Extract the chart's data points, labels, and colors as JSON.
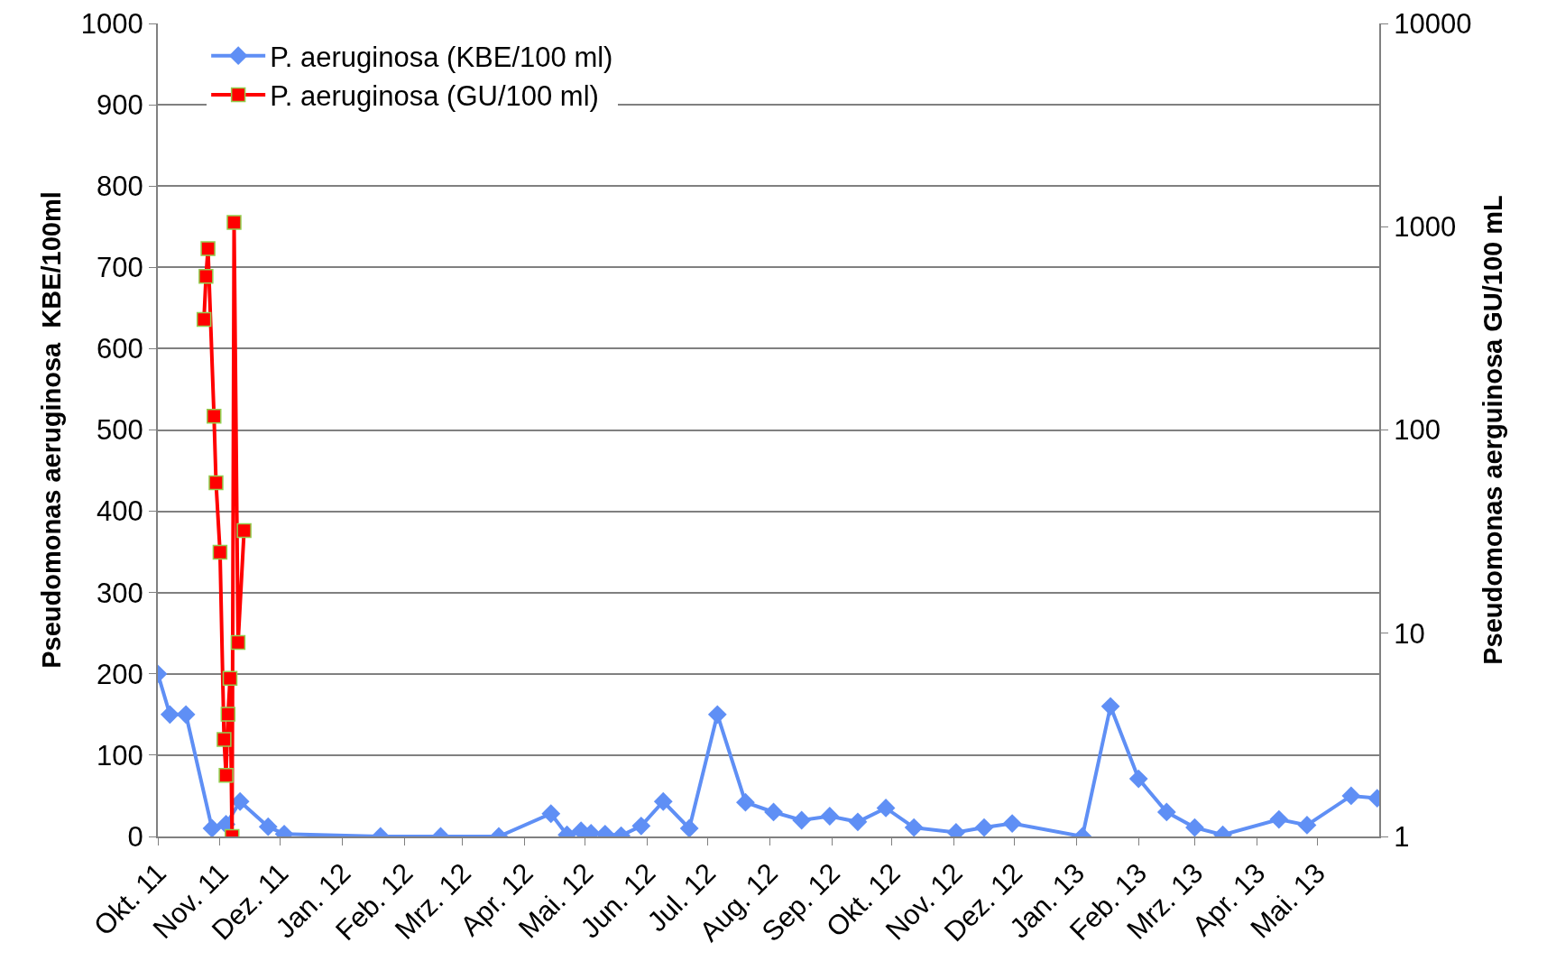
{
  "chart_data": {
    "type": "line",
    "ylabel": "Pseudomonas aeruginosa  KBE/100ml",
    "y2label": "Pseudomonas aerguinosa GU/100 mL",
    "xlim": [
      "2011-10-01",
      "2013-06-01"
    ],
    "xticks": [
      {
        "value": "2011-10-01",
        "label": "Okt. 11"
      },
      {
        "value": "2011-11-01",
        "label": "Nov. 11"
      },
      {
        "value": "2011-12-01",
        "label": "Dez. 11"
      },
      {
        "value": "2012-01-01",
        "label": "Jan. 12"
      },
      {
        "value": "2012-02-01",
        "label": "Feb. 12"
      },
      {
        "value": "2012-03-01",
        "label": "Mrz. 12"
      },
      {
        "value": "2012-04-01",
        "label": "Apr. 12"
      },
      {
        "value": "2012-05-01",
        "label": "Mai. 12"
      },
      {
        "value": "2012-06-01",
        "label": "Jun. 12"
      },
      {
        "value": "2012-07-01",
        "label": "Jul. 12"
      },
      {
        "value": "2012-08-01",
        "label": "Aug. 12"
      },
      {
        "value": "2012-09-01",
        "label": "Sep. 12"
      },
      {
        "value": "2012-10-01",
        "label": "Okt. 12"
      },
      {
        "value": "2012-11-01",
        "label": "Nov. 12"
      },
      {
        "value": "2012-12-01",
        "label": "Dez. 12"
      },
      {
        "value": "2013-01-01",
        "label": "Jan. 13"
      },
      {
        "value": "2013-02-01",
        "label": "Feb. 13"
      },
      {
        "value": "2013-03-01",
        "label": "Mrz. 13"
      },
      {
        "value": "2013-04-01",
        "label": "Apr. 13"
      },
      {
        "value": "2013-05-01",
        "label": "Mai. 13"
      }
    ],
    "ylim": [
      0,
      1000
    ],
    "yticks": [
      0,
      100,
      200,
      300,
      400,
      500,
      600,
      700,
      800,
      900,
      1000
    ],
    "y2lim": [
      1,
      10000
    ],
    "y2ticks": [
      1,
      10,
      100,
      1000,
      10000
    ],
    "log": "y2",
    "grid": "y",
    "legend": "top left",
    "line_style": "solid",
    "series": [
      {
        "name": "P. aeruginosa (KBE/100 ml)",
        "color": "#5f8ff5",
        "marker": "diamond",
        "x": [
          "2011-10-01",
          "2011-10-07",
          "2011-10-15",
          "2011-10-28",
          "2011-11-04",
          "2011-11-11",
          "2011-11-25",
          "2011-12-03",
          "2012-01-20",
          "2012-02-19",
          "2012-03-19",
          "2012-04-14",
          "2012-04-22",
          "2012-04-29",
          "2012-05-04",
          "2012-05-11",
          "2012-05-19",
          "2012-05-29",
          "2012-06-09",
          "2012-06-22",
          "2012-07-06",
          "2012-07-20",
          "2012-08-03",
          "2012-08-17",
          "2012-08-31",
          "2012-09-14",
          "2012-09-28",
          "2012-10-12",
          "2012-11-02",
          "2012-11-16",
          "2012-11-30",
          "2013-01-04",
          "2013-01-18",
          "2013-02-01",
          "2013-02-15",
          "2013-03-01",
          "2013-03-15",
          "2013-04-12",
          "2013-04-26",
          "2013-05-18",
          "2013-05-31"
        ],
        "values": [
          200,
          150,
          150,
          10,
          15,
          43,
          12,
          3,
          0,
          0,
          0,
          28,
          2,
          7,
          4,
          3,
          1,
          13,
          43,
          10,
          150,
          42,
          30,
          20,
          25,
          18,
          35,
          11,
          5,
          11,
          16,
          0,
          160,
          71,
          30,
          11,
          2,
          21,
          14,
          50,
          47
        ]
      },
      {
        "name": "P. aeruginosa (GU/100 ml)",
        "color": "#ff0000",
        "marker": "square",
        "axis": "y2",
        "x": [
          "2011-10-24",
          "2011-10-25",
          "2011-10-26",
          "2011-10-29",
          "2011-10-30",
          "2011-11-01",
          "2011-11-03",
          "2011-11-04",
          "2011-11-05",
          "2011-11-06",
          "2011-11-07",
          "2011-11-08",
          "2011-11-10",
          "2011-11-13"
        ],
        "values": [
          350,
          570,
          780,
          117,
          55,
          25,
          3,
          2,
          4,
          6,
          1,
          1050,
          9,
          32
        ]
      }
    ]
  }
}
